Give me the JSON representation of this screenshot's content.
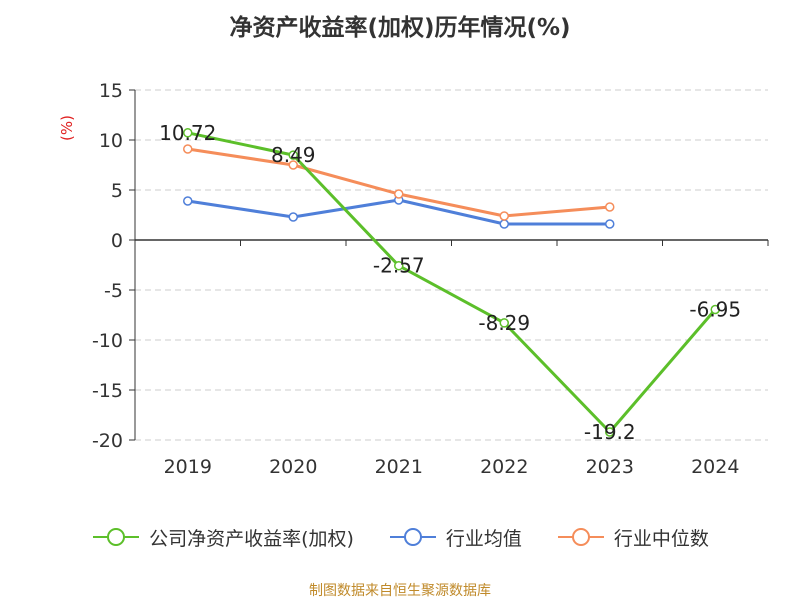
{
  "chart_data": {
    "type": "line",
    "title": "净资产收益率(加权)历年情况(%)",
    "ylabel": "(%)",
    "categories": [
      "2019",
      "2020",
      "2021",
      "2022",
      "2023",
      "2024"
    ],
    "ylim": [
      -20,
      15
    ],
    "yticks": [
      15,
      10,
      5,
      0,
      -5,
      -10,
      -15,
      -20
    ],
    "grid": true,
    "legend_position": "bottom",
    "series": [
      {
        "name": "公司净资产收益率(加权)",
        "color": "#5cbf2a",
        "values": [
          10.72,
          8.49,
          -2.57,
          -8.29,
          -19.2,
          -6.95
        ],
        "labels": [
          "10.72",
          "8.49",
          "-2.57",
          "-8.29",
          "-19.2",
          "-6.95"
        ]
      },
      {
        "name": "行业均值",
        "color": "#4f7fd9",
        "values": [
          3.9,
          2.3,
          4.0,
          1.6,
          1.6,
          null
        ]
      },
      {
        "name": "行业中位数",
        "color": "#f58d5a",
        "values": [
          9.1,
          7.5,
          4.6,
          2.4,
          3.3,
          null
        ]
      }
    ]
  },
  "source": "制图数据来自恒生聚源数据库"
}
